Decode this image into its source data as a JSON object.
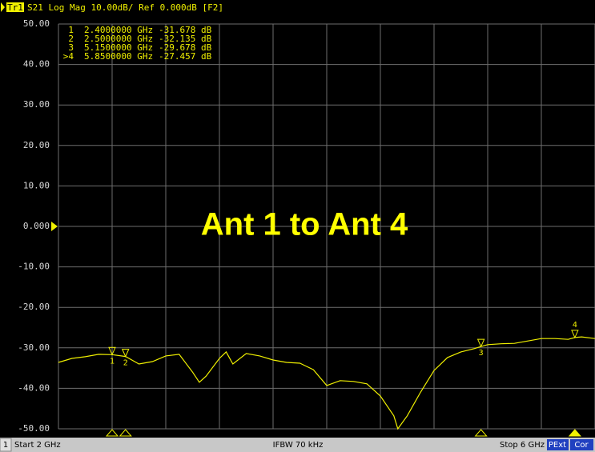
{
  "chart_data": {
    "type": "line",
    "header": {
      "trace": "Tr1",
      "title": "S21 Log Mag 10.00dB/ Ref 0.000dB [F2]"
    },
    "annotation": "Ant 1 to Ant 4",
    "xlim": [
      2,
      6
    ],
    "xticks": [
      2,
      2.4,
      2.8,
      3.2,
      3.6,
      4,
      4.4,
      4.8,
      5.2,
      5.6,
      6
    ],
    "ylim": [
      -50,
      50
    ],
    "yticks": [
      {
        "value": 50,
        "label": "50.00"
      },
      {
        "value": 40,
        "label": "40.00"
      },
      {
        "value": 30,
        "label": "30.00"
      },
      {
        "value": 20,
        "label": "20.00"
      },
      {
        "value": 10,
        "label": "10.00"
      },
      {
        "value": 0,
        "label": "0.000"
      },
      {
        "value": -10,
        "label": "-10.00"
      },
      {
        "value": -20,
        "label": "-20.00"
      },
      {
        "value": -30,
        "label": "-30.00"
      },
      {
        "value": -40,
        "label": "-40.00"
      },
      {
        "value": -50,
        "label": "-50.00"
      }
    ],
    "ref": 0,
    "grid": true,
    "series": [
      {
        "name": "S21",
        "color": "#f0f000",
        "x": [
          2.0,
          2.1,
          2.2,
          2.3,
          2.4,
          2.5,
          2.6,
          2.7,
          2.8,
          2.9,
          3.0,
          3.05,
          3.1,
          3.2,
          3.25,
          3.3,
          3.4,
          3.5,
          3.6,
          3.7,
          3.8,
          3.9,
          4.0,
          4.1,
          4.2,
          4.3,
          4.4,
          4.5,
          4.53,
          4.6,
          4.7,
          4.8,
          4.9,
          5.0,
          5.1,
          5.15,
          5.2,
          5.3,
          5.4,
          5.5,
          5.6,
          5.7,
          5.8,
          5.85,
          5.9,
          6.0
        ],
        "values": [
          -33.6,
          -32.6,
          -32.2,
          -31.6,
          -31.678,
          -32.135,
          -34,
          -33.4,
          -32,
          -31.6,
          -36,
          -38.5,
          -37,
          -32.6,
          -31,
          -34,
          -31.4,
          -32,
          -33,
          -33.6,
          -33.8,
          -35.4,
          -39.3,
          -38.1,
          -38.3,
          -38.9,
          -41.9,
          -46.8,
          -50,
          -46.8,
          -40.9,
          -35.6,
          -32.4,
          -31,
          -30.2,
          -29.678,
          -29.2,
          -29,
          -28.9,
          -28.3,
          -27.7,
          -27.7,
          -27.9,
          -27.457,
          -27.3,
          -27.7
        ]
      }
    ],
    "markers": [
      {
        "row_label": "1",
        "id": "1",
        "x": 2.4,
        "freq": "2.4000000 GHz",
        "value": -31.678,
        "level": "-31.678 dB",
        "active": false
      },
      {
        "row_label": "2",
        "id": "2",
        "x": 2.5,
        "freq": "2.5000000 GHz",
        "value": -32.135,
        "level": "-32.135 dB",
        "active": false
      },
      {
        "row_label": "3",
        "id": "3",
        "x": 5.15,
        "freq": "5.1500000 GHz",
        "value": -29.678,
        "level": "-29.678 dB",
        "active": false
      },
      {
        "row_label": ">4",
        "id": "4",
        "x": 5.85,
        "freq": "5.8500000 GHz",
        "value": -27.457,
        "level": "-27.457 dB",
        "active": true
      }
    ],
    "footer": {
      "channel": "1",
      "start": "Start 2 GHz",
      "ifbw": "IFBW 70 kHz",
      "stop": "Stop 6 GHz",
      "pext": "PExt",
      "cor": "Cor"
    }
  }
}
